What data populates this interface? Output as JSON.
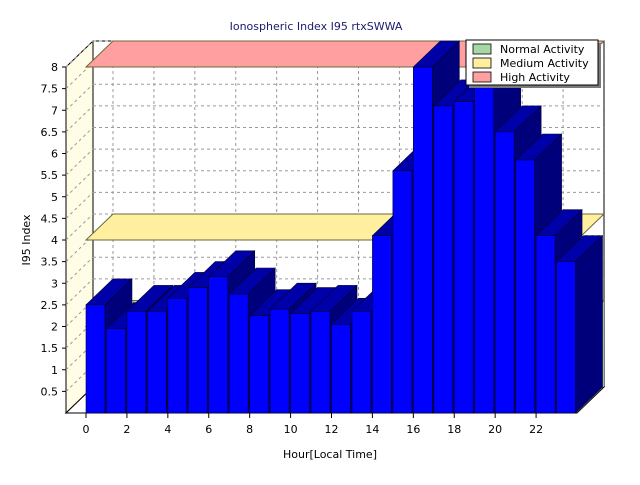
{
  "chart_data": {
    "type": "bar",
    "title": "Ionospheric Index I95 rtxSWWA",
    "xlabel": "Hour[Local Time]",
    "ylabel": "I95 Index",
    "x": [
      0,
      1,
      2,
      3,
      4,
      5,
      6,
      7,
      8,
      9,
      10,
      11,
      12,
      13,
      14,
      15,
      16,
      17,
      18,
      19,
      20,
      21,
      22,
      23
    ],
    "x_tick_labels": [
      "0",
      "2",
      "4",
      "6",
      "8",
      "10",
      "12",
      "14",
      "16",
      "18",
      "20",
      "22"
    ],
    "y_tick_labels": [
      "0.5",
      "1",
      "1.5",
      "2",
      "2.5",
      "3",
      "3.5",
      "4",
      "4.5",
      "5",
      "5.5",
      "6",
      "6.5",
      "7",
      "7.5",
      "8"
    ],
    "ylim": [
      0,
      8
    ],
    "grid": true,
    "legend_position": "top-right",
    "series": [
      {
        "values": [
          2.5,
          1.95,
          2.35,
          2.35,
          2.65,
          2.9,
          3.15,
          2.75,
          2.25,
          2.4,
          2.3,
          2.35,
          2.05,
          2.35,
          4.1,
          5.6,
          8.0,
          7.1,
          7.2,
          7.6,
          6.5,
          5.85,
          4.1,
          3.5
        ],
        "color": "#0000ff"
      }
    ],
    "bands": [
      {
        "name": "Normal Activity",
        "from": 0,
        "to": 2,
        "color": "#a6d8a6"
      },
      {
        "name": "Medium Activity",
        "from": 4,
        "to": 4,
        "color": "#ffef9e"
      },
      {
        "name": "High Activity",
        "from": 8,
        "to": 8,
        "color": "#ff9f9f"
      }
    ],
    "colors": {
      "back_wall": "#ffffff",
      "side_wall": "#fffde6",
      "floor": "#ffffff",
      "bar_front": "#0000ff",
      "bar_top": "#0000a8",
      "bar_side": "#00007a",
      "grid": "#9a9a9a",
      "title": "#1a1a6e"
    }
  }
}
